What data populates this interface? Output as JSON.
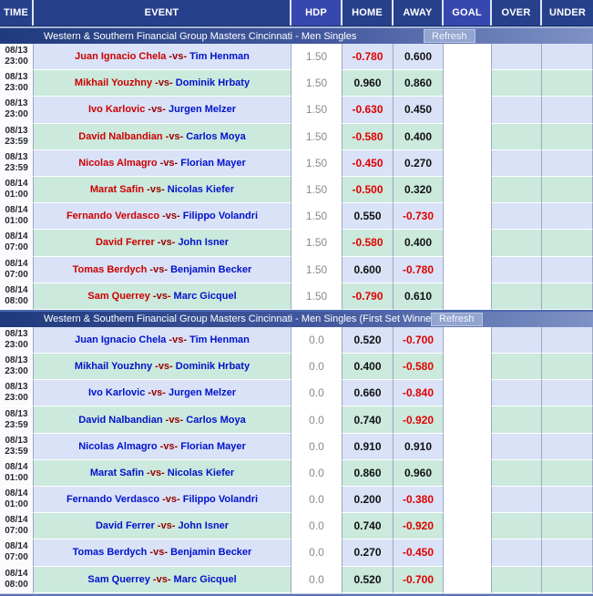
{
  "columns": [
    {
      "label": "TIME",
      "highlight": false
    },
    {
      "label": "EVENT",
      "highlight": false
    },
    {
      "label": "HDP",
      "highlight": true
    },
    {
      "label": "HOME",
      "highlight": false
    },
    {
      "label": "AWAY",
      "highlight": false
    },
    {
      "label": "GOAL",
      "highlight": true
    },
    {
      "label": "OVER",
      "highlight": false
    },
    {
      "label": "UNDER",
      "highlight": false
    }
  ],
  "colors": {
    "header_bg": "#27408c",
    "header_highlight_bg": "#3747b0",
    "section_bar_left": "#1f3b7d",
    "section_bar_right": "#7e92c5",
    "row_blue": "#d9e2f7",
    "row_green": "#cbe9dc",
    "negative_odds": "#e10000",
    "positive_odds": "#111111",
    "vs_text": "#990000",
    "hdp_text": "#8a8a8a",
    "name_red": "#cc0000",
    "name_blue": "#0012cc"
  },
  "sections": [
    {
      "title": "Western & Southern Financial Group Masters Cincinnati - Men Singles",
      "refresh_label": "Refresh",
      "home_name_color": "#cc0000",
      "away_name_color": "#0012cc",
      "rows": [
        {
          "date": "08/13",
          "time": "23:00",
          "home": "Juan Ignacio Chela",
          "vs": "-vs-",
          "away": "Tim Henman",
          "hdp": "1.50",
          "home_odds": "-0.780",
          "away_odds": "0.600"
        },
        {
          "date": "08/13",
          "time": "23:00",
          "home": "Mikhail Youzhny",
          "vs": "-vs-",
          "away": "Dominik Hrbaty",
          "hdp": "1.50",
          "home_odds": "0.960",
          "away_odds": "0.860"
        },
        {
          "date": "08/13",
          "time": "23:00",
          "home": "Ivo Karlovic",
          "vs": "-vs-",
          "away": "Jurgen Melzer",
          "hdp": "1.50",
          "home_odds": "-0.630",
          "away_odds": "0.450"
        },
        {
          "date": "08/13",
          "time": "23:59",
          "home": "David Nalbandian",
          "vs": "-vs-",
          "away": "Carlos Moya",
          "hdp": "1.50",
          "home_odds": "-0.580",
          "away_odds": "0.400"
        },
        {
          "date": "08/13",
          "time": "23:59",
          "home": "Nicolas Almagro",
          "vs": "-vs-",
          "away": "Florian Mayer",
          "hdp": "1.50",
          "home_odds": "-0.450",
          "away_odds": "0.270"
        },
        {
          "date": "08/14",
          "time": "01:00",
          "home": "Marat Safin",
          "vs": "-vs-",
          "away": "Nicolas Kiefer",
          "hdp": "1.50",
          "home_odds": "-0.500",
          "away_odds": "0.320"
        },
        {
          "date": "08/14",
          "time": "01:00",
          "home": "Fernando Verdasco",
          "vs": "-vs-",
          "away": "Filippo Volandri",
          "hdp": "1.50",
          "home_odds": "0.550",
          "away_odds": "-0.730"
        },
        {
          "date": "08/14",
          "time": "07:00",
          "home": "David Ferrer",
          "vs": "-vs-",
          "away": "John Isner",
          "hdp": "1.50",
          "home_odds": "-0.580",
          "away_odds": "0.400"
        },
        {
          "date": "08/14",
          "time": "07:00",
          "home": "Tomas Berdych",
          "vs": "-vs-",
          "away": "Benjamin Becker",
          "hdp": "1.50",
          "home_odds": "0.600",
          "away_odds": "-0.780"
        },
        {
          "date": "08/14",
          "time": "08:00",
          "home": "Sam Querrey",
          "vs": "-vs-",
          "away": "Marc Gicquel",
          "hdp": "1.50",
          "home_odds": "-0.790",
          "away_odds": "0.610"
        }
      ]
    },
    {
      "title": "Western & Southern Financial Group Masters Cincinnati - Men Singles (First Set Winner)",
      "refresh_label": "Refresh",
      "home_name_color": "#0012cc",
      "away_name_color": "#0012cc",
      "rows": [
        {
          "date": "08/13",
          "time": "23:00",
          "home": "Juan Ignacio Chela",
          "vs": "-vs-",
          "away": "Tim Henman",
          "hdp": "0.0",
          "home_odds": "0.520",
          "away_odds": "-0.700"
        },
        {
          "date": "08/13",
          "time": "23:00",
          "home": "Mikhail Youzhny",
          "vs": "-vs-",
          "away": "Dominik Hrbaty",
          "hdp": "0.0",
          "home_odds": "0.400",
          "away_odds": "-0.580"
        },
        {
          "date": "08/13",
          "time": "23:00",
          "home": "Ivo Karlovic",
          "vs": "-vs-",
          "away": "Jurgen Melzer",
          "hdp": "0.0",
          "home_odds": "0.660",
          "away_odds": "-0.840"
        },
        {
          "date": "08/13",
          "time": "23:59",
          "home": "David Nalbandian",
          "vs": "-vs-",
          "away": "Carlos Moya",
          "hdp": "0.0",
          "home_odds": "0.740",
          "away_odds": "-0.920"
        },
        {
          "date": "08/13",
          "time": "23:59",
          "home": "Nicolas Almagro",
          "vs": "-vs-",
          "away": "Florian Mayer",
          "hdp": "0.0",
          "home_odds": "0.910",
          "away_odds": "0.910"
        },
        {
          "date": "08/14",
          "time": "01:00",
          "home": "Marat Safin",
          "vs": "-vs-",
          "away": "Nicolas Kiefer",
          "hdp": "0.0",
          "home_odds": "0.860",
          "away_odds": "0.960"
        },
        {
          "date": "08/14",
          "time": "01:00",
          "home": "Fernando Verdasco",
          "vs": "-vs-",
          "away": "Filippo Volandri",
          "hdp": "0.0",
          "home_odds": "0.200",
          "away_odds": "-0.380"
        },
        {
          "date": "08/14",
          "time": "07:00",
          "home": "David Ferrer",
          "vs": "-vs-",
          "away": "John Isner",
          "hdp": "0.0",
          "home_odds": "0.740",
          "away_odds": "-0.920"
        },
        {
          "date": "08/14",
          "time": "07:00",
          "home": "Tomas Berdych",
          "vs": "-vs-",
          "away": "Benjamin Becker",
          "hdp": "0.0",
          "home_odds": "0.270",
          "away_odds": "-0.450"
        },
        {
          "date": "08/14",
          "time": "08:00",
          "home": "Sam Querrey",
          "vs": "-vs-",
          "away": "Marc Gicquel",
          "hdp": "0.0",
          "home_odds": "0.520",
          "away_odds": "-0.700"
        }
      ]
    }
  ]
}
